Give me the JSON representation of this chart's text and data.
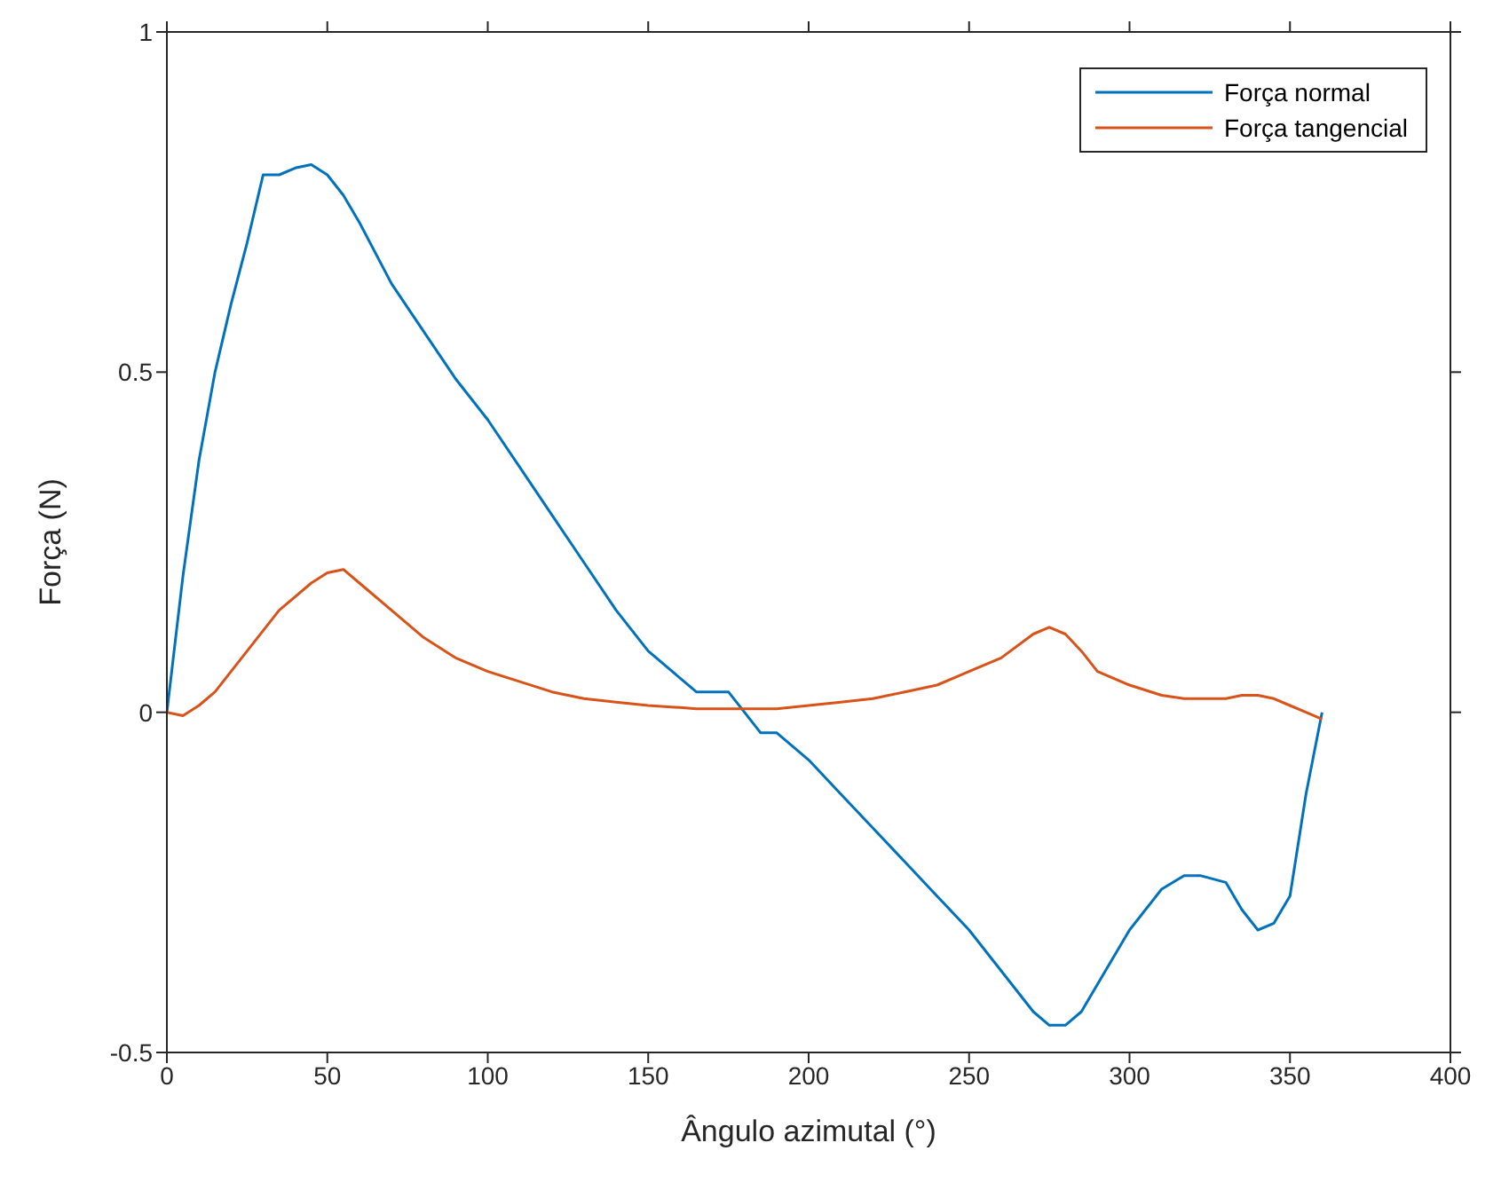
{
  "chart_data": {
    "type": "line",
    "xlabel": "Ângulo azimutal (°)",
    "ylabel": "Força (N)",
    "x": [
      0,
      5,
      10,
      15,
      20,
      25,
      30,
      35,
      40,
      45,
      50,
      55,
      60,
      70,
      80,
      90,
      100,
      110,
      120,
      130,
      140,
      150,
      160,
      165,
      170,
      175,
      180,
      185,
      190,
      200,
      210,
      220,
      230,
      240,
      250,
      260,
      270,
      275,
      280,
      285,
      290,
      300,
      310,
      317,
      322,
      330,
      335,
      340,
      345,
      350,
      355,
      360
    ],
    "series": [
      {
        "name": "Força normal",
        "color": "#0072bd",
        "values": [
          0,
          0.2,
          0.37,
          0.5,
          0.6,
          0.69,
          0.79,
          0.79,
          0.8,
          0.805,
          0.79,
          0.76,
          0.72,
          0.63,
          0.56,
          0.49,
          0.43,
          0.36,
          0.29,
          0.22,
          0.15,
          0.09,
          0.05,
          0.03,
          0.03,
          0.03,
          0.0,
          -0.03,
          -0.03,
          -0.07,
          -0.12,
          -0.17,
          -0.22,
          -0.27,
          -0.32,
          -0.38,
          -0.44,
          -0.46,
          -0.46,
          -0.44,
          -0.4,
          -0.32,
          -0.26,
          -0.24,
          -0.24,
          -0.25,
          -0.29,
          -0.32,
          -0.31,
          -0.27,
          -0.12,
          0
        ]
      },
      {
        "name": "Força tangencial",
        "color": "#d95319",
        "values": [
          0,
          -0.005,
          0.01,
          0.03,
          0.06,
          0.09,
          0.12,
          0.15,
          0.17,
          0.19,
          0.205,
          0.21,
          0.19,
          0.15,
          0.11,
          0.08,
          0.06,
          0.045,
          0.03,
          0.02,
          0.015,
          0.01,
          0.007,
          0.005,
          0.005,
          0.005,
          0.005,
          0.005,
          0.005,
          0.01,
          0.015,
          0.02,
          0.03,
          0.04,
          0.06,
          0.08,
          0.115,
          0.125,
          0.115,
          0.09,
          0.06,
          0.04,
          0.025,
          0.02,
          0.02,
          0.02,
          0.025,
          0.025,
          0.02,
          0.01,
          0,
          -0.01
        ]
      }
    ],
    "xlim": [
      0,
      400
    ],
    "xticks": [
      0,
      50,
      100,
      150,
      200,
      250,
      300,
      350,
      400
    ],
    "ylim": [
      -0.5,
      1
    ],
    "yticks": [
      -0.5,
      0,
      0.5,
      1
    ],
    "grid": false,
    "legend": "top right",
    "marker": "none",
    "line_style": "solid"
  }
}
